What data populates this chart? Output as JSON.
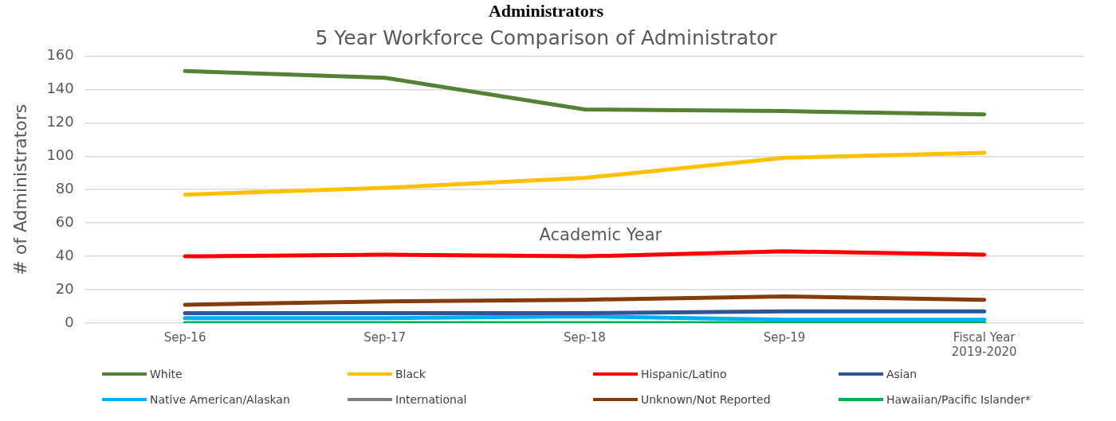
{
  "chart_data": {
    "type": "line",
    "title": "Administrators",
    "subtitle": "5 Year Workforce Comparison of Administrator",
    "xlabel": "Academic Year",
    "ylabel": "# of Administrators",
    "categories": [
      "Sep-16",
      "Sep-17",
      "Sep-18",
      "Sep-19",
      "Fiscal Year 2019-2020"
    ],
    "ylim": [
      0,
      160
    ],
    "yticks": [
      0,
      20,
      40,
      60,
      80,
      100,
      120,
      140,
      160
    ],
    "grid": "y",
    "legend": "bottom",
    "marker": "none",
    "line_style": "solid",
    "series": [
      {
        "name": "White",
        "color": "#548235",
        "values": [
          151,
          147,
          128,
          127,
          125
        ]
      },
      {
        "name": "Black",
        "color": "#ffc000",
        "values": [
          77,
          81,
          87,
          99,
          102
        ]
      },
      {
        "name": "Hispanic/Latino",
        "color": "#ff0000",
        "values": [
          40,
          41,
          40,
          43,
          41
        ]
      },
      {
        "name": "Asian",
        "color": "#2f5597",
        "values": [
          6,
          6,
          6,
          7,
          7
        ]
      },
      {
        "name": "Native American/Alaskan",
        "color": "#00b0f0",
        "values": [
          3,
          3,
          4,
          2,
          2
        ]
      },
      {
        "name": "International",
        "color": "#7f7f7f",
        "values": [
          null,
          null,
          null,
          null,
          null
        ]
      },
      {
        "name": "Unknown/Not Reported",
        "color": "#843c0c",
        "values": [
          11,
          13,
          14,
          16,
          14
        ]
      },
      {
        "name": "Hawaiian/Pacific Islander*",
        "color": "#00b050",
        "values": [
          0,
          0,
          0,
          0,
          0
        ]
      }
    ]
  }
}
